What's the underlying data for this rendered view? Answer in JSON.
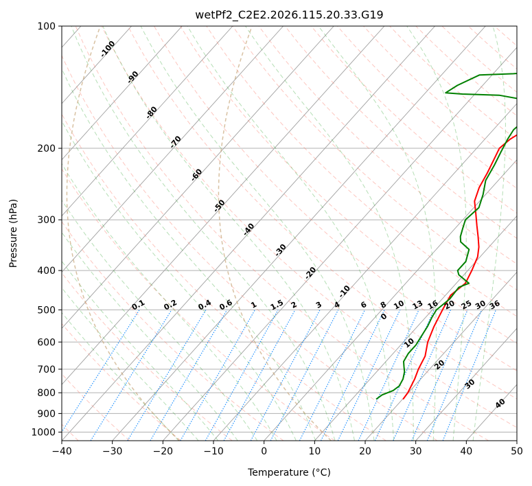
{
  "chart_data": {
    "type": "line",
    "title": "wetPf2_C2E2.2026.115.20.33.G19",
    "xlabel": "Temperature (°C)",
    "ylabel": "Pressure (hPa)",
    "xlim": [
      -40,
      50
    ],
    "ylim": [
      1050,
      100
    ],
    "y_scale": "log",
    "grid": true,
    "x_ticks": [
      "−40",
      "−30",
      "−20",
      "−10",
      "0",
      "10",
      "20",
      "30",
      "40",
      "50"
    ],
    "y_ticks": [
      "100",
      "200",
      "300",
      "400",
      "500",
      "600",
      "700",
      "800",
      "900",
      "1000"
    ],
    "series": [
      {
        "role": "temperature",
        "color": "#ff0000",
        "points": [
          [
            20.1,
            830
          ],
          [
            19.9,
            800
          ],
          [
            18.8,
            740
          ],
          [
            17.8,
            700
          ],
          [
            16.8,
            650
          ],
          [
            14.8,
            600
          ],
          [
            13.3,
            550
          ],
          [
            12.0,
            500
          ],
          [
            11.0,
            460
          ],
          [
            11.8,
            430
          ],
          [
            10.8,
            400
          ],
          [
            9.5,
            370
          ],
          [
            8.0,
            350
          ],
          [
            6.0,
            330
          ],
          [
            3.8,
            310
          ],
          [
            1.5,
            290
          ],
          [
            -1.0,
            270
          ],
          [
            -2.5,
            250
          ],
          [
            -3.5,
            230
          ],
          [
            -4.8,
            210
          ],
          [
            -5.5,
            200
          ],
          [
            -5.0,
            190
          ],
          [
            -3.0,
            175
          ],
          [
            0,
            165
          ],
          [
            3.5,
            158
          ],
          [
            9.0,
            150
          ],
          [
            13.5,
            145
          ],
          [
            15.8,
            140
          ],
          [
            16.8,
            135
          ],
          [
            17.0,
            130
          ],
          [
            16.5,
            125
          ],
          [
            15.8,
            120
          ],
          [
            15.6,
            115
          ],
          [
            16.0,
            110
          ],
          [
            17.5,
            105
          ],
          [
            18.8,
            100
          ]
        ]
      },
      {
        "role": "dewpoint",
        "color": "#008000",
        "points": [
          [
            14.8,
            830
          ],
          [
            15.2,
            810
          ],
          [
            16.6,
            790
          ],
          [
            17.0,
            770
          ],
          [
            16.5,
            740
          ],
          [
            15.5,
            710
          ],
          [
            14.5,
            690
          ],
          [
            13.5,
            670
          ],
          [
            13.0,
            640
          ],
          [
            13.0,
            610
          ],
          [
            12.5,
            580
          ],
          [
            12.0,
            550
          ],
          [
            11.2,
            520
          ],
          [
            10.8,
            500
          ],
          [
            11.5,
            470
          ],
          [
            11.2,
            440
          ],
          [
            12.5,
            430
          ],
          [
            9.0,
            410
          ],
          [
            8.0,
            400
          ],
          [
            8.0,
            380
          ],
          [
            6.5,
            355
          ],
          [
            3.5,
            340
          ],
          [
            2.5,
            330
          ],
          [
            1.5,
            315
          ],
          [
            0.5,
            300
          ],
          [
            1.0,
            280
          ],
          [
            -0.5,
            260
          ],
          [
            -2.5,
            240
          ],
          [
            -3.5,
            220
          ],
          [
            -4.5,
            205
          ],
          [
            -5.5,
            190
          ],
          [
            -6.0,
            180
          ],
          [
            -5.5,
            170
          ],
          [
            -6.0,
            160
          ],
          [
            -9.0,
            152
          ],
          [
            -15.0,
            148
          ],
          [
            -22.5,
            147
          ],
          [
            -26.0,
            146
          ],
          [
            -25.0,
            140
          ],
          [
            -22.5,
            132
          ],
          [
            -16.0,
            131
          ],
          [
            -9.0,
            129
          ],
          [
            -7.0,
            125
          ],
          [
            -7.2,
            115
          ],
          [
            -7.0,
            110
          ],
          [
            -5.5,
            105
          ],
          [
            -3.0,
            100
          ]
        ]
      }
    ],
    "dry_adiabat_labels": [
      "-100",
      "-90",
      "-80",
      "-70",
      "-60",
      "-50",
      "-40",
      "-30",
      "-20",
      "-10"
    ],
    "mixing_ratio_labels": [
      "0.1",
      "0.2",
      "0.4",
      "0.6",
      "1",
      "1.5",
      "2",
      "3",
      "4",
      "6",
      "8",
      "10",
      "13",
      "16",
      "20",
      "25",
      "30",
      "36"
    ],
    "moist_adiabat_labels": [
      "0",
      "10",
      "20",
      "30",
      "40"
    ],
    "colors": {
      "dry_adiabat": "#1f77b4",
      "mixing_ratio": "#1e90ff",
      "moist_adiabat": "#d62728",
      "moist_adiabat_zero": "#808080",
      "isotherm": "#a0a0a0",
      "isobar": "#b0b0b0"
    }
  }
}
